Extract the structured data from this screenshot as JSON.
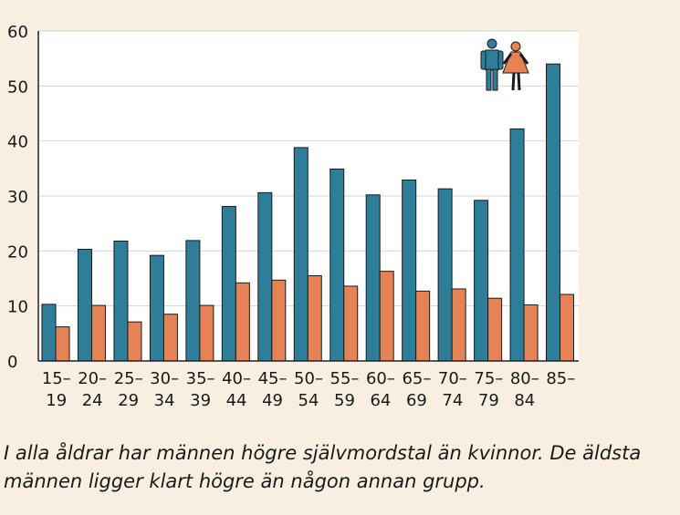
{
  "chart_data": {
    "type": "bar",
    "categories": [
      [
        "15–",
        "19"
      ],
      [
        "20–",
        "24"
      ],
      [
        "25–",
        "29"
      ],
      [
        "30–",
        "34"
      ],
      [
        "35–",
        "39"
      ],
      [
        "40–",
        "44"
      ],
      [
        "45–",
        "49"
      ],
      [
        "50–",
        "54"
      ],
      [
        "55–",
        "59"
      ],
      [
        "60–",
        "64"
      ],
      [
        "65–",
        "69"
      ],
      [
        "70–",
        "74"
      ],
      [
        "75–",
        "79"
      ],
      [
        "80–",
        "84"
      ],
      [
        "85–",
        ""
      ]
    ],
    "series": [
      {
        "values": [
          10.3,
          20.3,
          21.8,
          19.2,
          21.9,
          28.1,
          30.6,
          38.8,
          34.9,
          30.2,
          32.9,
          31.3,
          29.2,
          42.2,
          54.0
        ]
      },
      {
        "values": [
          6.2,
          10.1,
          7.1,
          8.5,
          10.1,
          14.2,
          14.7,
          15.5,
          13.6,
          16.3,
          12.7,
          13.1,
          11.4,
          10.2,
          12.1
        ]
      }
    ],
    "colors": {
      "men": "#2f7e99",
      "women": "#e58357",
      "grid": "#d9d4cc",
      "axis": "#222222"
    },
    "ylim": [
      0,
      60
    ],
    "yticks": [
      0,
      10,
      20,
      30,
      40,
      50,
      60
    ],
    "grid": true,
    "legend": {
      "icons": [
        "man-icon",
        "woman-icon"
      ],
      "placement": "top-right"
    }
  },
  "caption": {
    "line1": "I alla åldrar har männen högre självmordstal än kvinnor. De äldsta",
    "line2": "männen ligger klart högre än någon annan grupp."
  }
}
